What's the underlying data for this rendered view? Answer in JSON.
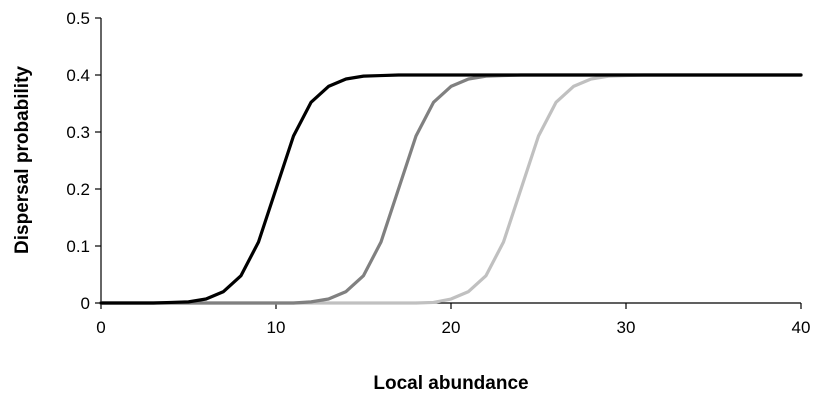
{
  "chart_data": {
    "type": "line",
    "title": "",
    "xlabel": "Local abundance",
    "ylabel": "Dispersal probability",
    "xlim": [
      0,
      40
    ],
    "ylim": [
      0,
      0.5
    ],
    "x_ticks": [
      0,
      10,
      20,
      30,
      40
    ],
    "y_ticks": [
      0,
      0.1,
      0.2,
      0.3,
      0.4,
      0.5
    ],
    "x_tick_labels": [
      "0",
      "10",
      "20",
      "30",
      "40"
    ],
    "y_tick_labels": [
      "0",
      "0.1",
      "0.2",
      "0.3",
      "0.4",
      "0.5"
    ],
    "grid": false,
    "legend": "none",
    "x": [
      0,
      1,
      2,
      3,
      4,
      5,
      6,
      7,
      8,
      9,
      10,
      11,
      12,
      13,
      14,
      15,
      16,
      17,
      18,
      19,
      20,
      21,
      22,
      23,
      24,
      25,
      26,
      27,
      28,
      29,
      30,
      31,
      32,
      33,
      34,
      35,
      36,
      37,
      38,
      39,
      40
    ],
    "series": [
      {
        "color": "#000000",
        "values": [
          0,
          0,
          0,
          0,
          0.001,
          0.002,
          0.007,
          0.02,
          0.048,
          0.107,
          0.2,
          0.293,
          0.352,
          0.38,
          0.393,
          0.398,
          0.399,
          0.4,
          0.4,
          0.4,
          0.4,
          0.4,
          0.4,
          0.4,
          0.4,
          0.4,
          0.4,
          0.4,
          0.4,
          0.4,
          0.4,
          0.4,
          0.4,
          0.4,
          0.4,
          0.4,
          0.4,
          0.4,
          0.4,
          0.4,
          0.4
        ]
      },
      {
        "color": "#808080",
        "values": [
          0,
          0,
          0,
          0,
          0,
          0,
          0,
          0,
          0,
          0,
          0,
          0,
          0.002,
          0.007,
          0.02,
          0.048,
          0.107,
          0.2,
          0.293,
          0.352,
          0.38,
          0.393,
          0.398,
          0.399,
          0.4,
          0.4,
          0.4,
          0.4,
          0.4,
          0.4,
          0.4,
          0.4,
          0.4,
          0.4,
          0.4,
          0.4,
          0.4,
          0.4,
          0.4,
          0.4,
          0.4
        ]
      },
      {
        "color": "#c0c0c0",
        "values": [
          0,
          0,
          0,
          0,
          0,
          0,
          0,
          0,
          0,
          0,
          0,
          0,
          0,
          0,
          0,
          0,
          0,
          0,
          0,
          0.001,
          0.007,
          0.02,
          0.048,
          0.107,
          0.2,
          0.293,
          0.352,
          0.38,
          0.393,
          0.398,
          0.399,
          0.4,
          0.4,
          0.4,
          0.4,
          0.4,
          0.4,
          0.4,
          0.4,
          0.4,
          0.4
        ]
      }
    ]
  }
}
